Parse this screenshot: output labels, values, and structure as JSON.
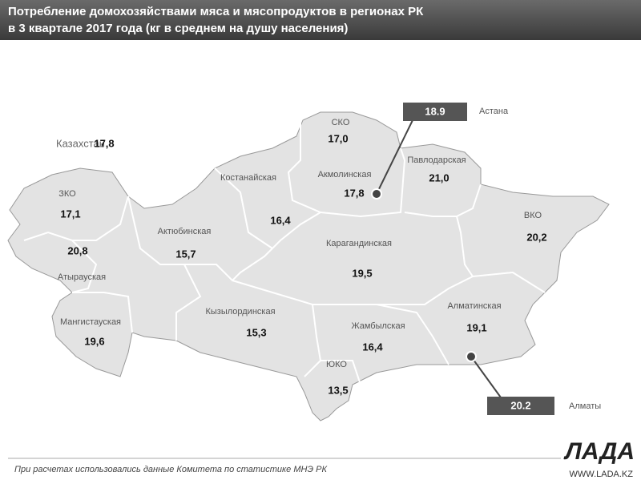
{
  "header": {
    "title_line1": "Потребление домохозяйствами мяса и мясопродуктов  в регионах РК",
    "title_line2": "в 3 квартале 2017 года (кг в среднем на душу  населения)"
  },
  "country": {
    "name": "Казахстан",
    "value": "17,8"
  },
  "regions": [
    {
      "name": "СКО",
      "value": "17,0"
    },
    {
      "name": "Акмолинская",
      "value": "17,8"
    },
    {
      "name": "Павлодарская",
      "value": "21,0"
    },
    {
      "name": "Костанайская",
      "value": "16,4"
    },
    {
      "name": "ЗКО",
      "value": "17,1"
    },
    {
      "name": "Атырауская",
      "value": "20,8"
    },
    {
      "name": "Актюбинская",
      "value": "15,7"
    },
    {
      "name": "Карагандинская",
      "value": "19,5"
    },
    {
      "name": "ВКО",
      "value": "20,2"
    },
    {
      "name": "Мангистауская",
      "value": "19,6"
    },
    {
      "name": "Кызылординская",
      "value": "15,3"
    },
    {
      "name": "Жамбылская",
      "value": "16,4"
    },
    {
      "name": "ЮКО",
      "value": "13,5"
    },
    {
      "name": "Алматинская",
      "value": "19,1"
    }
  ],
  "callouts": [
    {
      "value": "18.9",
      "city": "Астана"
    },
    {
      "value": "20.2",
      "city": "Алматы"
    }
  ],
  "footer": {
    "note": "При расчетах использовались данные Комитета по статистике МНЭ РК",
    "logo": "ЛАДА",
    "site": "WWW.LADA.KZ"
  }
}
